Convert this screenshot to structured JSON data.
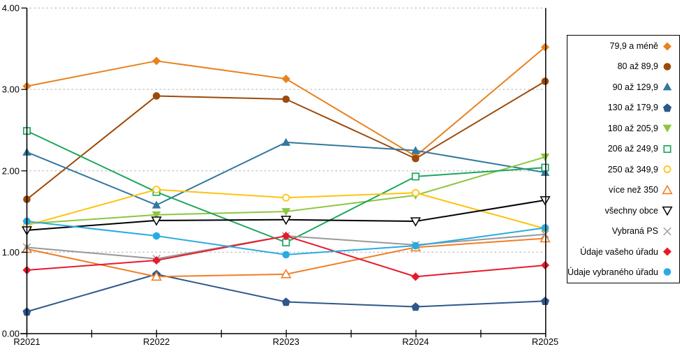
{
  "chart_data": {
    "type": "line",
    "title": "",
    "xlabel": "",
    "ylabel": "",
    "categories": [
      "R2021",
      "R2022",
      "R2023",
      "R2024",
      "R2025"
    ],
    "ylim": [
      0,
      4
    ],
    "y_tick_labels": [
      "0.00",
      "1.00",
      "2.00",
      "3.00",
      "4.00"
    ],
    "grid": "horizontal-dotted",
    "legend_position": "right",
    "series": [
      {
        "name": "79,9 a méně",
        "color": "#E8821E",
        "marker": "diamond",
        "filled": true,
        "values": [
          3.04,
          3.35,
          3.13,
          2.18,
          3.52
        ]
      },
      {
        "name": "80 až 89,9",
        "color": "#9C4A0A",
        "marker": "circle",
        "filled": true,
        "values": [
          1.65,
          2.92,
          2.88,
          2.15,
          3.1
        ]
      },
      {
        "name": "90 až 129,9",
        "color": "#33789E",
        "marker": "triangle-up",
        "filled": true,
        "values": [
          2.23,
          1.58,
          2.35,
          2.25,
          1.98
        ]
      },
      {
        "name": "130 až 179,9",
        "color": "#2F578C",
        "marker": "pentagon",
        "filled": true,
        "values": [
          0.27,
          0.73,
          0.39,
          0.33,
          0.4
        ]
      },
      {
        "name": "180 až 205,9",
        "color": "#8CC63E",
        "marker": "triangle-down",
        "filled": true,
        "values": [
          1.35,
          1.46,
          1.5,
          1.7,
          2.17
        ]
      },
      {
        "name": "206 až 249,9",
        "color": "#1CA75C",
        "marker": "square",
        "filled": false,
        "values": [
          2.49,
          1.74,
          1.12,
          1.93,
          2.04
        ]
      },
      {
        "name": "250 až 349,9",
        "color": "#FFC20E",
        "marker": "circle",
        "filled": false,
        "values": [
          1.33,
          1.77,
          1.67,
          1.73,
          1.29
        ]
      },
      {
        "name": "více než 350",
        "color": "#F07E26",
        "marker": "triangle-up",
        "filled": false,
        "values": [
          1.04,
          0.7,
          0.73,
          1.06,
          1.17
        ]
      },
      {
        "name": "všechny obce",
        "color": "#000000",
        "marker": "triangle-down",
        "filled": false,
        "values": [
          1.27,
          1.39,
          1.4,
          1.38,
          1.64
        ]
      },
      {
        "name": "Vybraná PS",
        "color": "#999999",
        "marker": "x",
        "filled": false,
        "values": [
          1.06,
          0.92,
          1.2,
          1.09,
          1.22
        ]
      },
      {
        "name": "Údaje vašeho úřadu",
        "color": "#E8192C",
        "marker": "diamond",
        "filled": true,
        "values": [
          0.78,
          0.9,
          1.2,
          0.7,
          0.84
        ]
      },
      {
        "name": "Údaje vybraného úřadu",
        "color": "#29ABE1",
        "marker": "circle",
        "filled": true,
        "values": [
          1.38,
          1.2,
          0.97,
          1.08,
          1.3
        ]
      }
    ]
  },
  "colors": {
    "background": "#FFFFFF",
    "gridline": "#BFBFBF",
    "axis": "#000000",
    "legend_border": "#000000"
  }
}
